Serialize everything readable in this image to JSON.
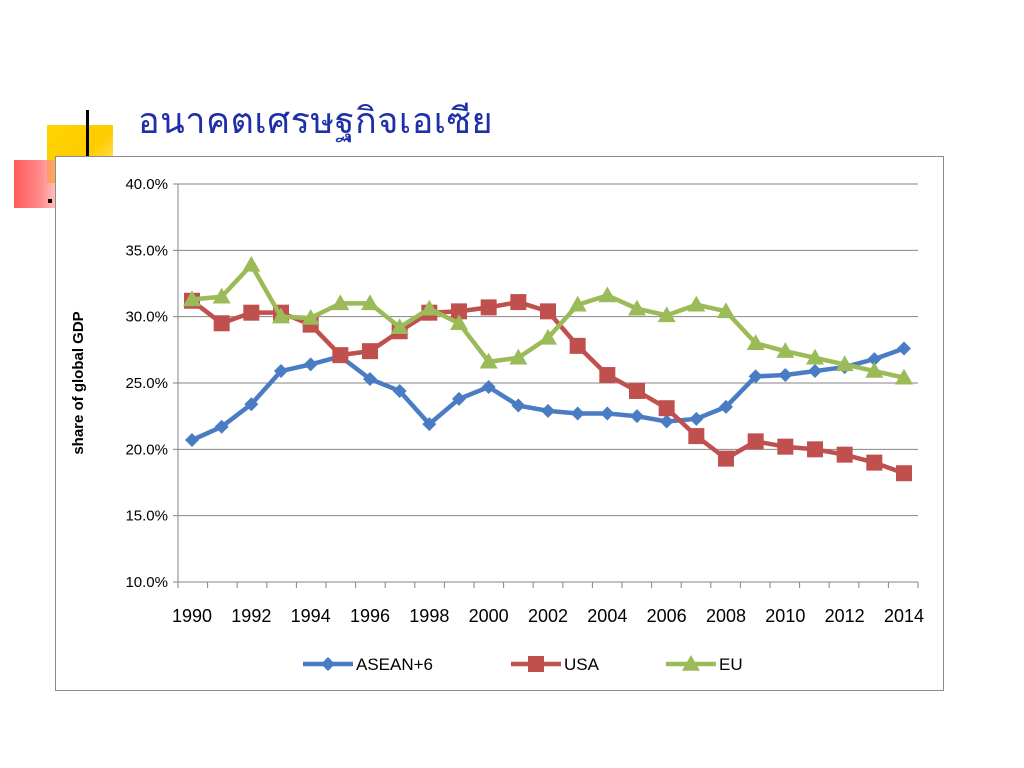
{
  "slide": {
    "title": "อนาคตเศรษฐกิจเอเซีย"
  },
  "colors": {
    "title": "#1f2fa8",
    "asean": "#4a7cc4",
    "usa": "#c0504d",
    "eu": "#9bbb59",
    "grid": "#868686",
    "frame": "#8c8c8c"
  },
  "chart_data": {
    "type": "line",
    "title": "",
    "xlabel": "",
    "ylabel": "share of global GDP",
    "x": [
      1990,
      1991,
      1992,
      1993,
      1994,
      1995,
      1996,
      1997,
      1998,
      1999,
      2000,
      2001,
      2002,
      2003,
      2004,
      2005,
      2006,
      2007,
      2008,
      2009,
      2010,
      2011,
      2012,
      2013,
      2014
    ],
    "x_tick_labels": [
      "1990",
      "1992",
      "1994",
      "1996",
      "1998",
      "2000",
      "2002",
      "2004",
      "2006",
      "2008",
      "2010",
      "2012",
      "2014"
    ],
    "ylim": [
      0.1,
      0.4
    ],
    "y_tick_values": [
      0.1,
      0.15,
      0.2,
      0.25,
      0.3,
      0.35,
      0.4
    ],
    "y_tick_labels": [
      "10.0%",
      "15.0%",
      "20.0%",
      "25.0%",
      "30.0%",
      "35.0%",
      "40.0%"
    ],
    "grid": "horizontal",
    "legend_position": "bottom",
    "series": [
      {
        "name": "ASEAN+6",
        "marker": "diamond",
        "color": "#4a7cc4",
        "values": [
          0.207,
          0.217,
          0.234,
          0.259,
          0.264,
          0.27,
          0.253,
          0.244,
          0.219,
          0.238,
          0.247,
          0.233,
          0.229,
          0.227,
          0.227,
          0.225,
          0.221,
          0.223,
          0.232,
          0.255,
          0.256,
          0.259,
          0.262,
          0.268,
          0.276
        ]
      },
      {
        "name": "USA",
        "marker": "square",
        "color": "#c0504d",
        "values": [
          0.312,
          0.295,
          0.303,
          0.303,
          0.294,
          0.271,
          0.274,
          0.289,
          0.303,
          0.304,
          0.307,
          0.311,
          0.304,
          0.278,
          0.256,
          0.244,
          0.231,
          0.21,
          0.193,
          0.206,
          0.202,
          0.2,
          0.196,
          0.19,
          0.182
        ]
      },
      {
        "name": "EU",
        "marker": "triangle",
        "color": "#9bbb59",
        "values": [
          0.313,
          0.315,
          0.339,
          0.3,
          0.299,
          0.31,
          0.31,
          0.292,
          0.306,
          0.295,
          0.266,
          0.269,
          0.284,
          0.309,
          0.316,
          0.306,
          0.301,
          0.309,
          0.304,
          0.28,
          0.274,
          0.269,
          0.264,
          0.259,
          0.254
        ]
      }
    ]
  }
}
